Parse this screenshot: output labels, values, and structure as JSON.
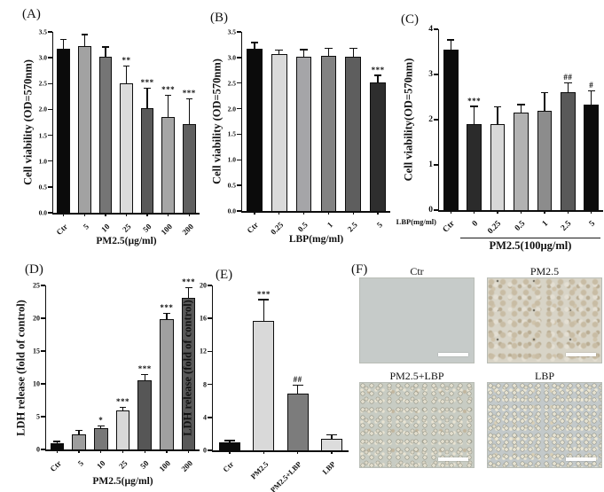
{
  "panel_labels": {
    "A": "(A)",
    "B": "(B)",
    "C": "(C)",
    "D": "(D)",
    "E": "(E)",
    "F": "(F)"
  },
  "chart_data": [
    {
      "id": "A",
      "type": "bar",
      "title": "",
      "ylabel": "Cell viability (OD=570nm)",
      "xlabel": "PM2.5(µg/ml)",
      "ylim": [
        0,
        3.5
      ],
      "yticks": [
        "0.0",
        "0.5",
        "1.0",
        "1.5",
        "2.0",
        "2.5",
        "3.0",
        "3.5"
      ],
      "categories": [
        "Ctr",
        "5",
        "10",
        "25",
        "50",
        "100",
        "200"
      ],
      "values": [
        3.17,
        3.22,
        3.02,
        2.5,
        2.03,
        1.85,
        1.71
      ],
      "errors": [
        0.17,
        0.22,
        0.18,
        0.33,
        0.37,
        0.41,
        0.48
      ],
      "sig": [
        "",
        "",
        "",
        "**",
        "***",
        "***",
        "***"
      ],
      "bar_colors": [
        "#0b0b0b",
        "#a2a2a2",
        "#757575",
        "#dcdcdc",
        "#595959",
        "#a6a6a6",
        "#606060"
      ],
      "legend": null,
      "grid": false
    },
    {
      "id": "B",
      "type": "bar",
      "title": "",
      "ylabel": "Cell viability (OD=570nm)",
      "xlabel": "LBP(mg/ml)",
      "ylim": [
        0,
        3.5
      ],
      "yticks": [
        "0.0",
        "0.5",
        "1.0",
        "1.5",
        "2.0",
        "2.5",
        "3.0",
        "3.5"
      ],
      "categories": [
        "Ctr",
        "0.25",
        "0.5",
        "1",
        "2.5",
        "5"
      ],
      "values": [
        3.17,
        3.07,
        3.01,
        3.04,
        3.01,
        2.52
      ],
      "errors": [
        0.11,
        0.06,
        0.13,
        0.13,
        0.16,
        0.12
      ],
      "sig": [
        "",
        "",
        "",
        "",
        "",
        "***"
      ],
      "bar_colors": [
        "#0b0b0b",
        "#dadada",
        "#a5a5a8",
        "#828282",
        "#5e5e5e",
        "#2e2e2e"
      ],
      "legend": null,
      "grid": false
    },
    {
      "id": "C",
      "type": "bar",
      "title": "",
      "ylabel": "Cell viability(OD=570nm)",
      "xlabel": "",
      "axis_prefix": "LBP(mg/ml)",
      "group_label": "PM2.5(100µg/ml)",
      "group_span": [
        1,
        6
      ],
      "ylim": [
        0,
        4
      ],
      "yticks": [
        "0",
        "1",
        "2",
        "3",
        "4"
      ],
      "categories": [
        "Ctr",
        "0",
        "0.25",
        "0.5",
        "1",
        "2.5",
        "5"
      ],
      "values": [
        3.55,
        1.91,
        1.9,
        2.16,
        2.2,
        2.61,
        2.34
      ],
      "errors": [
        0.2,
        0.37,
        0.37,
        0.16,
        0.38,
        0.19,
        0.28
      ],
      "sig": [
        "",
        "***",
        "",
        "",
        "",
        "##",
        "#"
      ],
      "bar_colors": [
        "#0b0b0b",
        "#2b2b2b",
        "#d8d8d8",
        "#b2b2b2",
        "#8c8c8c",
        "#595959",
        "#0b0b0b"
      ],
      "legend": null,
      "grid": false
    },
    {
      "id": "D",
      "type": "bar",
      "title": "",
      "ylabel": "LDH release (fold of control)",
      "xlabel": "PM2.5(µg/ml)",
      "ylim": [
        0,
        25
      ],
      "yticks": [
        "0",
        "5",
        "10",
        "15",
        "20",
        "25"
      ],
      "categories": [
        "Ctr",
        "5",
        "10",
        "25",
        "50",
        "100",
        "200"
      ],
      "values": [
        1.0,
        2.3,
        3.2,
        6.0,
        10.5,
        19.8,
        23.1
      ],
      "errors": [
        0.15,
        0.55,
        0.25,
        0.3,
        0.8,
        0.9,
        1.5
      ],
      "sig": [
        "",
        "",
        "*",
        "***",
        "***",
        "***",
        "***"
      ],
      "bar_colors": [
        "#0b0b0b",
        "#9e9e9e",
        "#787878",
        "#d8d8d8",
        "#565656",
        "#a0a0a0",
        "#585858"
      ],
      "legend": null,
      "grid": false
    },
    {
      "id": "E",
      "type": "bar",
      "title": "",
      "ylabel": "LDH release (fold of control)",
      "xlabel": "",
      "ylim": [
        0,
        20
      ],
      "yticks": [
        "0",
        "4",
        "8",
        "12",
        "16",
        "20"
      ],
      "categories": [
        "Ctr",
        "PM2.5",
        "PM2.5+LBP",
        "LBP"
      ],
      "values": [
        1.0,
        15.7,
        6.9,
        1.4
      ],
      "errors": [
        0.1,
        2.5,
        0.9,
        0.4
      ],
      "sig": [
        "",
        "***",
        "##",
        ""
      ],
      "bar_colors": [
        "#0b0b0b",
        "#d9d9d9",
        "#7c7c7c",
        "#dcdcdc"
      ],
      "legend": null,
      "grid": false
    },
    {
      "id": "F",
      "type": "micrograph-grid",
      "images": [
        {
          "label": "Ctr",
          "style": "m-ctr"
        },
        {
          "label": "PM2.5",
          "style": "m-pm25"
        },
        {
          "label": "PM2.5+LBP",
          "style": "m-pmlbp"
        },
        {
          "label": "LBP",
          "style": "m-lbp"
        }
      ]
    }
  ]
}
